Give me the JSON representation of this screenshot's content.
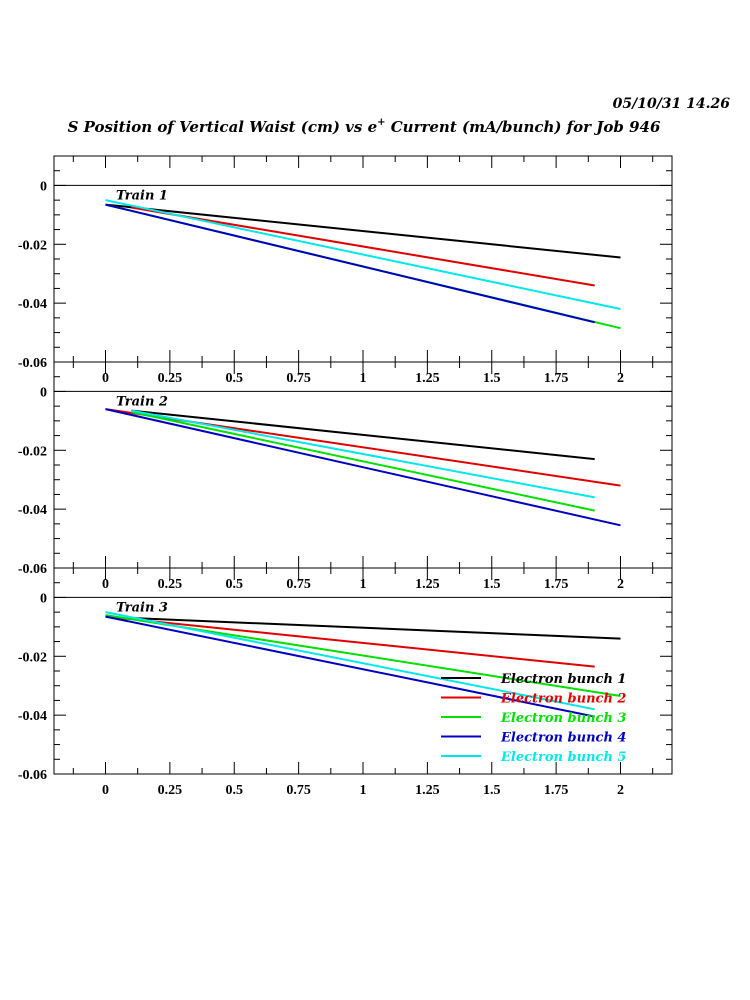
{
  "timestamp": "05/10/31   14.26",
  "title": {
    "prefix": "S Position of Vertical Waist (cm) vs e",
    "superscript": "+",
    "suffix": " Current (mA/bunch) for Job 946"
  },
  "colors": {
    "Electron bunch 1": "#000000",
    "Electron bunch 2": "#e00000",
    "Electron bunch 3": "#00e000",
    "Electron bunch 4": "#0000c0",
    "Electron bunch 5": "#00e8e8"
  },
  "legend": [
    "Electron bunch 1",
    "Electron bunch 2",
    "Electron bunch 3",
    "Electron bunch 4",
    "Electron bunch 5"
  ],
  "chart_data": [
    {
      "type": "line",
      "label": "Train 1",
      "xlim": [
        -0.2,
        2.2
      ],
      "ylim": [
        -0.06,
        0.01
      ],
      "xticks": [
        "0",
        "0.25",
        "0.5",
        "0.75",
        "1",
        "1.25",
        "1.5",
        "1.75",
        "2"
      ],
      "yticks": [
        "0",
        "-0.02",
        "-0.04",
        "-0.06"
      ],
      "series": [
        {
          "name": "Electron bunch 1",
          "x": [
            0,
            2
          ],
          "y": [
            -0.0065,
            -0.0245
          ]
        },
        {
          "name": "Electron bunch 2",
          "x": [
            0.1,
            1.9
          ],
          "y": [
            -0.0075,
            -0.034
          ]
        },
        {
          "name": "Electron bunch 3",
          "x": [
            0,
            2
          ],
          "y": [
            -0.0065,
            -0.0485
          ]
        },
        {
          "name": "Electron bunch 4",
          "x": [
            0,
            1.9
          ],
          "y": [
            -0.0065,
            -0.0465
          ]
        },
        {
          "name": "Electron bunch 5",
          "x": [
            0,
            2
          ],
          "y": [
            -0.005,
            -0.042
          ]
        }
      ]
    },
    {
      "type": "line",
      "label": "Train 2",
      "xlim": [
        -0.2,
        2.2
      ],
      "ylim": [
        -0.06,
        0.01
      ],
      "xticks": [
        "0",
        "0.25",
        "0.5",
        "0.75",
        "1",
        "1.25",
        "1.5",
        "1.75",
        "2"
      ],
      "yticks": [
        "0",
        "-0.02",
        "-0.04",
        "-0.06"
      ],
      "series": [
        {
          "name": "Electron bunch 1",
          "x": [
            0.1,
            1.9
          ],
          "y": [
            -0.0065,
            -0.023
          ]
        },
        {
          "name": "Electron bunch 2",
          "x": [
            0,
            2
          ],
          "y": [
            -0.006,
            -0.032
          ]
        },
        {
          "name": "Electron bunch 3",
          "x": [
            0.1,
            1.9
          ],
          "y": [
            -0.007,
            -0.0405
          ]
        },
        {
          "name": "Electron bunch 4",
          "x": [
            0,
            2
          ],
          "y": [
            -0.006,
            -0.0455
          ]
        },
        {
          "name": "Electron bunch 5",
          "x": [
            0.1,
            1.9
          ],
          "y": [
            -0.0065,
            -0.036
          ]
        }
      ]
    },
    {
      "type": "line",
      "label": "Train 3",
      "xlim": [
        -0.2,
        2.2
      ],
      "ylim": [
        -0.06,
        0.01
      ],
      "xticks": [
        "0",
        "0.25",
        "0.5",
        "0.75",
        "1",
        "1.25",
        "1.5",
        "1.75",
        "2"
      ],
      "yticks": [
        "0",
        "-0.02",
        "-0.04",
        "-0.06"
      ],
      "series": [
        {
          "name": "Electron bunch 1",
          "x": [
            0.1,
            2
          ],
          "y": [
            -0.007,
            -0.014
          ]
        },
        {
          "name": "Electron bunch 2",
          "x": [
            0,
            1.9
          ],
          "y": [
            -0.0065,
            -0.0235
          ]
        },
        {
          "name": "Electron bunch 3",
          "x": [
            0,
            2
          ],
          "y": [
            -0.006,
            -0.0335
          ]
        },
        {
          "name": "Electron bunch 4",
          "x": [
            0,
            1.9
          ],
          "y": [
            -0.0065,
            -0.0405
          ]
        },
        {
          "name": "Electron bunch 5",
          "x": [
            0,
            1.9
          ],
          "y": [
            -0.005,
            -0.038
          ]
        }
      ]
    }
  ]
}
